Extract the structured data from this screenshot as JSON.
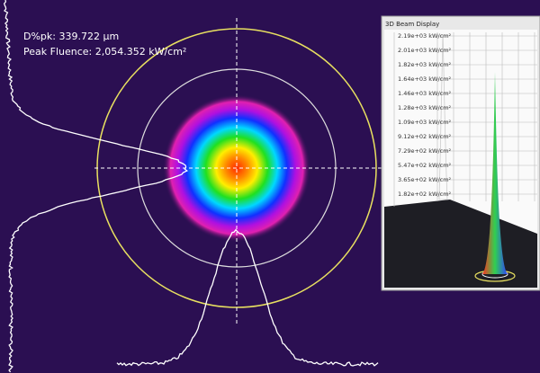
{
  "overlay": {
    "diameter": "D%pk: 339.722 µm",
    "peak_fluence": "Peak Fluence: 2,054.352 kW/cm²"
  },
  "inset": {
    "title": "3D Beam Display",
    "scale_labels": [
      "2.19e+03 kW/cm²",
      "2.01e+03 kW/cm²",
      "1.82e+03 kW/cm²",
      "1.64e+03 kW/cm²",
      "1.46e+03 kW/cm²",
      "1.28e+03 kW/cm²",
      "1.09e+03 kW/cm²",
      "9.12e+02 kW/cm²",
      "7.29e+02 kW/cm²",
      "5.47e+02 kW/cm²",
      "3.65e+02 kW/cm²",
      "1.82e+02 kW/cm²"
    ]
  }
}
